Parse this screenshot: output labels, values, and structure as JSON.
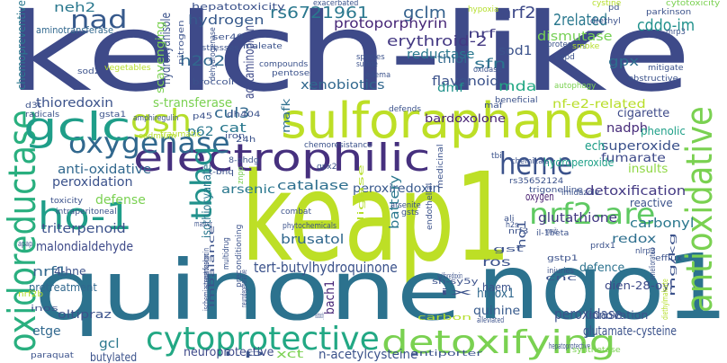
{
  "background": "#ffffff",
  "words": [
    {
      "t": "keap1",
      "c": "#bddf26"
    },
    {
      "t": "kelch-like",
      "c": "#3e4a89"
    },
    {
      "t": "quinone",
      "c": "#2c728e"
    },
    {
      "t": "nqo1",
      "c": "#2c728e"
    },
    {
      "t": "sulforaphane",
      "c": "#bddf26"
    },
    {
      "t": "electrophilic",
      "c": "#46307e"
    },
    {
      "t": "oxidoreductase",
      "c": "#29af7f"
    },
    {
      "t": "antioxidative",
      "c": "#7ad151"
    },
    {
      "t": "cytoprotective",
      "c": "#22a884"
    },
    {
      "t": "detoxifying",
      "c": "#7ad151"
    },
    {
      "t": "oxygenase",
      "c": "#31688e"
    },
    {
      "t": "gclc",
      "c": "#1f9e89"
    },
    {
      "t": "ho-1",
      "c": "#1f9e89"
    },
    {
      "t": "heme",
      "c": "#3b528b"
    },
    {
      "t": "nrf2-are",
      "c": "#5ec962"
    },
    {
      "t": "gsh",
      "c": "#b5de2b"
    },
    {
      "t": "nad",
      "c": "#375a8c"
    },
    {
      "t": "tbhq",
      "c": "#21918c"
    },
    {
      "t": "rs6721961",
      "c": "#2a788e"
    },
    {
      "t": "gclm",
      "c": "#34618d"
    },
    {
      "t": "nrf2a",
      "c": "#3e4a89"
    },
    {
      "t": "2related",
      "c": "#2a788e"
    },
    {
      "t": "cddo-im",
      "c": "#21918c"
    },
    {
      "t": "neh2",
      "c": "#2a788e"
    },
    {
      "t": "hepatotoxicity",
      "c": "#3b528b"
    },
    {
      "t": "hydrogen",
      "c": "#375a8c"
    },
    {
      "t": "protoporphyrin",
      "c": "#482878"
    },
    {
      "t": "erythroid-2",
      "c": "#443983"
    },
    {
      "t": "dismutase",
      "c": "#75d054"
    },
    {
      "t": "sod1",
      "c": "#3b528b"
    },
    {
      "t": "nrf",
      "c": "#433e85"
    },
    {
      "t": "sfn",
      "c": "#2c728e"
    },
    {
      "t": "mda",
      "c": "#22a884"
    },
    {
      "t": "gpx",
      "c": "#2e6f8e"
    },
    {
      "t": "h2o2",
      "c": "#31688e"
    },
    {
      "t": "acetaminophen",
      "c": "#3e4a89"
    },
    {
      "t": "reductase",
      "c": "#2a788e"
    },
    {
      "t": "thiol",
      "c": "#31688e"
    },
    {
      "t": "flavonoid",
      "c": "#3b528b"
    },
    {
      "t": "dmf",
      "c": "#20928c"
    },
    {
      "t": "xenobiotics",
      "c": "#31688e"
    },
    {
      "t": "thioredoxin",
      "c": "#3b528b"
    },
    {
      "t": "bardoxolone",
      "c": "#482475"
    },
    {
      "t": "nf-e2-related",
      "c": "#b8de29"
    },
    {
      "t": "cigarette",
      "c": "#3e4a89"
    },
    {
      "t": "nadph",
      "c": "#472c7a"
    },
    {
      "t": "phenolic",
      "c": "#1fa088"
    },
    {
      "t": "s-transferase",
      "c": "#7ad151"
    },
    {
      "t": "cul3",
      "c": "#31688e"
    },
    {
      "t": "p62",
      "c": "#2a788e"
    },
    {
      "t": "cat",
      "c": "#2a788e"
    },
    {
      "t": "mafk",
      "c": "#2e6f8e"
    },
    {
      "t": "superoxide",
      "c": "#3b528b"
    },
    {
      "t": "ech",
      "c": "#1f9e89"
    },
    {
      "t": "fumarate",
      "c": "#3e4a89"
    },
    {
      "t": "insults",
      "c": "#8fd744"
    },
    {
      "t": "anti-oxidative",
      "c": "#31688e"
    },
    {
      "t": "peroxidation",
      "c": "#3b528b"
    },
    {
      "t": "catalase",
      "c": "#2e6f8e"
    },
    {
      "t": "arsenic",
      "c": "#2a788e"
    },
    {
      "t": "peroxiredoxin",
      "c": "#38598c"
    },
    {
      "t": "detoxification",
      "c": "#443983"
    },
    {
      "t": "defense",
      "c": "#7ad151"
    },
    {
      "t": "isothiocyanate",
      "c": "#2a788e"
    },
    {
      "t": "battery",
      "c": "#2a788e"
    },
    {
      "t": "hydroperoxide",
      "c": "#1fa188"
    },
    {
      "t": "oxygen",
      "c": "#481f70"
    },
    {
      "t": "reactive",
      "c": "#3b528b"
    },
    {
      "t": "glutathione",
      "c": "#443983"
    },
    {
      "t": "carbonyl",
      "c": "#2a788e"
    },
    {
      "t": "triterpenoid",
      "c": "#3b528b"
    },
    {
      "t": "brusatol",
      "c": "#31688e"
    },
    {
      "t": "redox",
      "c": "#2e6f8e"
    },
    {
      "t": "malondialdehyde",
      "c": "#3e4a89"
    },
    {
      "t": "tert-butylhydroquinone",
      "c": "#3b528b"
    },
    {
      "t": "ros",
      "c": "#3b528b"
    },
    {
      "t": "defence",
      "c": "#2c728e"
    },
    {
      "t": "ho1",
      "c": "#3b528b"
    },
    {
      "t": "nrf1",
      "c": "#31688e"
    },
    {
      "t": "4-hne",
      "c": "#3b528b"
    },
    {
      "t": "pretreatment",
      "c": "#31688e"
    },
    {
      "t": "haem",
      "c": "#3b528b"
    },
    {
      "t": "dien-28-oyl",
      "c": "#3e4a89"
    },
    {
      "t": "hmox1",
      "c": "#31688e"
    },
    {
      "t": "peroxidase",
      "c": "#3b528b"
    },
    {
      "t": "innovation",
      "c": "#3b528b"
    },
    {
      "t": "glutamate-cysteine",
      "c": "#3b528b"
    },
    {
      "t": "quinine",
      "c": "#375a8c"
    },
    {
      "t": "bach1",
      "c": "#482878"
    },
    {
      "t": "oltipraz",
      "c": "#3b528b"
    },
    {
      "t": "etge",
      "c": "#31688e"
    },
    {
      "t": "gcl",
      "c": "#2a788e"
    },
    {
      "t": "butylated",
      "c": "#3b528b"
    },
    {
      "t": "neuroprotective",
      "c": "#3e4a89"
    },
    {
      "t": "xct",
      "c": "#7ad151"
    },
    {
      "t": "n-acetylcysteine",
      "c": "#3b528b"
    },
    {
      "t": "hydroxyanisole",
      "c": "#3b528b"
    },
    {
      "t": "chemopreventive",
      "c": "#2a788e"
    },
    {
      "t": "aminotransferase",
      "c": "#31688e"
    },
    {
      "t": "nitrogen",
      "c": "#3b528b"
    },
    {
      "t": "scavenging",
      "c": "#7ad151"
    },
    {
      "t": "dehydrogenase",
      "c": "#3b528b"
    },
    {
      "t": "ser40",
      "c": "#3b528b"
    },
    {
      "t": "stresses",
      "c": "#3b528b"
    },
    {
      "t": "maleate",
      "c": "#3b528b"
    },
    {
      "t": "compounds",
      "c": "#3b528b"
    },
    {
      "t": "pentose",
      "c": "#3b528b"
    },
    {
      "t": "broccoli",
      "c": "#3b528b"
    },
    {
      "t": "vegetables",
      "c": "#b5de2b"
    },
    {
      "t": "sod2",
      "c": "#3b528b"
    },
    {
      "t": "d3t",
      "c": "#3b528b"
    },
    {
      "t": "radicals",
      "c": "#3b528b"
    },
    {
      "t": "gsta1",
      "c": "#3b528b"
    },
    {
      "t": "amphiregulin",
      "c": "#3b528b"
    },
    {
      "t": "p45",
      "c": "#3b528b"
    },
    {
      "t": "dh404",
      "c": "#3b528b"
    },
    {
      "t": "traumatic",
      "c": "#b5de2b"
    },
    {
      "t": "cadmium",
      "c": "#b5de2b"
    },
    {
      "t": "24h",
      "c": "#3b528b"
    },
    {
      "t": "iron",
      "c": "#3b528b"
    },
    {
      "t": "chemoresistance",
      "c": "#3b528b"
    },
    {
      "t": "defends",
      "c": "#3b528b"
    },
    {
      "t": "maf",
      "c": "#3b528b"
    },
    {
      "t": "beneficial",
      "c": "#3b528b"
    },
    {
      "t": "autophagy",
      "c": "#7ad151"
    },
    {
      "t": "mitigate",
      "c": "#3b528b"
    },
    {
      "t": "obstructive",
      "c": "#3b528b"
    },
    {
      "t": "pd",
      "c": "#3b528b"
    },
    {
      "t": "cystine",
      "c": "#b5de2b"
    },
    {
      "t": "cytotoxicity",
      "c": "#7ad151"
    },
    {
      "t": "parkinson",
      "c": "#3b528b"
    },
    {
      "t": "exacerbated",
      "c": "#3b528b"
    },
    {
      "t": "hypoxia",
      "c": "#b5de2b"
    },
    {
      "t": "diethyl",
      "c": "#3b528b"
    },
    {
      "t": "mrp3",
      "c": "#3b528b"
    },
    {
      "t": "protecting",
      "c": "#3b528b"
    },
    {
      "t": "copd",
      "c": "#3b528b"
    },
    {
      "t": "smoke",
      "c": "#b5de2b"
    },
    {
      "t": "oxidase",
      "c": "#3b528b"
    },
    {
      "t": "species",
      "c": "#3b528b"
    },
    {
      "t": "edema",
      "c": "#3b528b"
    },
    {
      "t": "sulfide",
      "c": "#3b528b"
    },
    {
      "t": "8-ohdg",
      "c": "#3b528b"
    },
    {
      "t": "t-bhq",
      "c": "#3b528b"
    },
    {
      "t": "tbi",
      "c": "#3b528b"
    },
    {
      "t": "gpx2",
      "c": "#3b528b"
    },
    {
      "t": "rs35652124",
      "c": "#3b528b"
    },
    {
      "t": "chemicals",
      "c": "#3b528b"
    },
    {
      "t": "trigonelline",
      "c": "#3b528b"
    },
    {
      "t": "imidazole",
      "c": "#3b528b"
    },
    {
      "t": "toxicity",
      "c": "#3b528b"
    },
    {
      "t": "intraperitoneal",
      "c": "#3b528b"
    },
    {
      "t": "znpp",
      "c": "#7ad151"
    },
    {
      "t": "combat",
      "c": "#3b528b"
    },
    {
      "t": "phytochemicals",
      "c": "#3b528b"
    },
    {
      "t": "arsenite",
      "c": "#3b528b"
    },
    {
      "t": "gsts",
      "c": "#3b528b"
    },
    {
      "t": "ali",
      "c": "#3b528b"
    },
    {
      "t": "h2s",
      "c": "#3b528b"
    },
    {
      "t": "nrf3",
      "c": "#3b528b"
    },
    {
      "t": "il-1beta",
      "c": "#3b528b"
    },
    {
      "t": "gstp1",
      "c": "#3b528b"
    },
    {
      "t": "prdx1",
      "c": "#3b528b"
    },
    {
      "t": "injuries",
      "c": "#3b528b"
    },
    {
      "t": "cnc",
      "c": "#3b528b"
    },
    {
      "t": "nlrp3",
      "c": "#3b528b"
    },
    {
      "t": "efflux",
      "c": "#3b528b"
    },
    {
      "t": "gst",
      "c": "#3b528b"
    },
    {
      "t": "apap",
      "c": "#3b528b"
    },
    {
      "t": "nrf2b",
      "c": "#b5de2b"
    },
    {
      "t": "inos",
      "c": "#3b528b"
    },
    {
      "t": "master",
      "c": "#3b528b"
    },
    {
      "t": "multidrug",
      "c": "#3b528b"
    },
    {
      "t": "streptozotocin",
      "c": "#3b528b"
    },
    {
      "t": "ischemia-reperfusion",
      "c": "#3b528b"
    },
    {
      "t": "imbalance",
      "c": "#3b528b"
    },
    {
      "t": "neurodegenerative",
      "c": "#3b528b"
    },
    {
      "t": "preconditioning",
      "c": "#3b528b"
    },
    {
      "t": "ligase",
      "c": "#b5de2b"
    },
    {
      "t": "sulforedoxin",
      "c": "#3b528b"
    },
    {
      "t": "sh-sy5y",
      "c": "#3b528b"
    },
    {
      "t": "ix",
      "c": "#3b528b"
    },
    {
      "t": "neurotoxicity",
      "c": "#3b528b"
    },
    {
      "t": "carbon",
      "c": "#b5de2b"
    },
    {
      "t": "alleviated",
      "c": "#3b528b"
    },
    {
      "t": "hepatoprotective",
      "c": "#3b528b"
    },
    {
      "t": "antiporter",
      "c": "#3b528b"
    },
    {
      "t": "synthetase",
      "c": "#7ad151"
    },
    {
      "t": "diethylmaleate",
      "c": "#b5de2b"
    },
    {
      "t": "mg/kg",
      "c": "#3b528b"
    },
    {
      "t": "ameliorated",
      "c": "#3b528b"
    },
    {
      "t": "paraquat",
      "c": "#3b528b"
    },
    {
      "t": "i.p",
      "c": "#3b528b"
    },
    {
      "t": "monoxide",
      "c": "#3b528b"
    },
    {
      "t": "medicinal",
      "c": "#3b528b"
    },
    {
      "t": "endothelial",
      "c": "#3b528b"
    }
  ]
}
